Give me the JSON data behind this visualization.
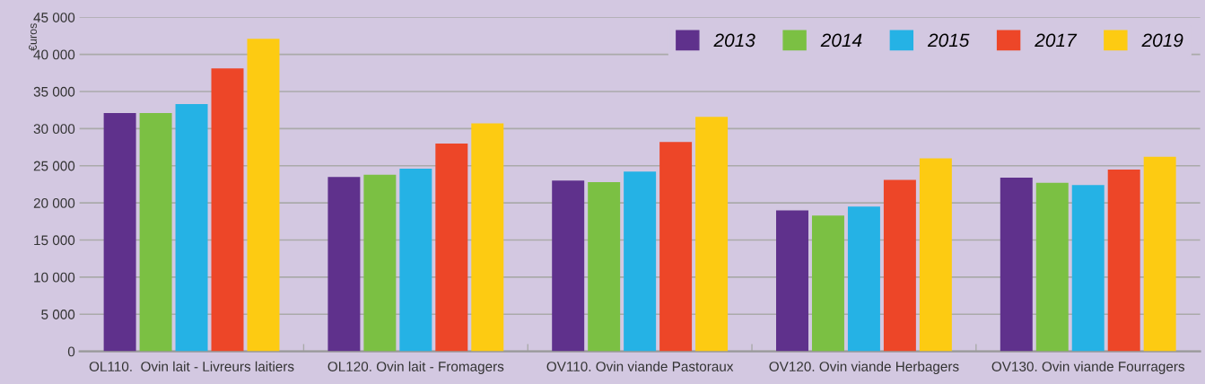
{
  "chart_data": {
    "type": "bar",
    "ylabel": "€uros",
    "categories": [
      "OL110.  Ovin lait - Livreurs laitiers",
      "OL120. Ovin lait - Fromagers",
      "OV110. Ovin viande Pastoraux",
      "OV120. Ovin viande Herbagers",
      "OV130. Ovin viande Fourragers"
    ],
    "series": [
      {
        "name": "2013",
        "color": "#5f318c",
        "values": [
          32100,
          23500,
          23000,
          19000,
          23400
        ]
      },
      {
        "name": "2014",
        "color": "#7bc043",
        "values": [
          32100,
          23800,
          22800,
          18300,
          22700
        ]
      },
      {
        "name": "2015",
        "color": "#25b2e5",
        "values": [
          33300,
          24600,
          24200,
          19500,
          22400
        ]
      },
      {
        "name": "2017",
        "color": "#ed4628",
        "values": [
          38100,
          28000,
          28200,
          23100,
          24500
        ]
      },
      {
        "name": "2019",
        "color": "#fdcb12",
        "values": [
          42100,
          30700,
          31600,
          26000,
          26200
        ]
      }
    ],
    "ylim": [
      0,
      45000
    ],
    "yticks": [
      {
        "value": 0,
        "label": "0"
      },
      {
        "value": 5000,
        "label": "5 000"
      },
      {
        "value": 10000,
        "label": "10 000"
      },
      {
        "value": 15000,
        "label": "15 000"
      },
      {
        "value": 20000,
        "label": "20 000"
      },
      {
        "value": 25000,
        "label": "25 000"
      },
      {
        "value": 30000,
        "label": "30 000"
      },
      {
        "value": 35000,
        "label": "35 000"
      },
      {
        "value": 40000,
        "label": "40 000"
      },
      {
        "value": 45000,
        "label": "45 000"
      }
    ],
    "grid": "y",
    "legend": "top right"
  }
}
